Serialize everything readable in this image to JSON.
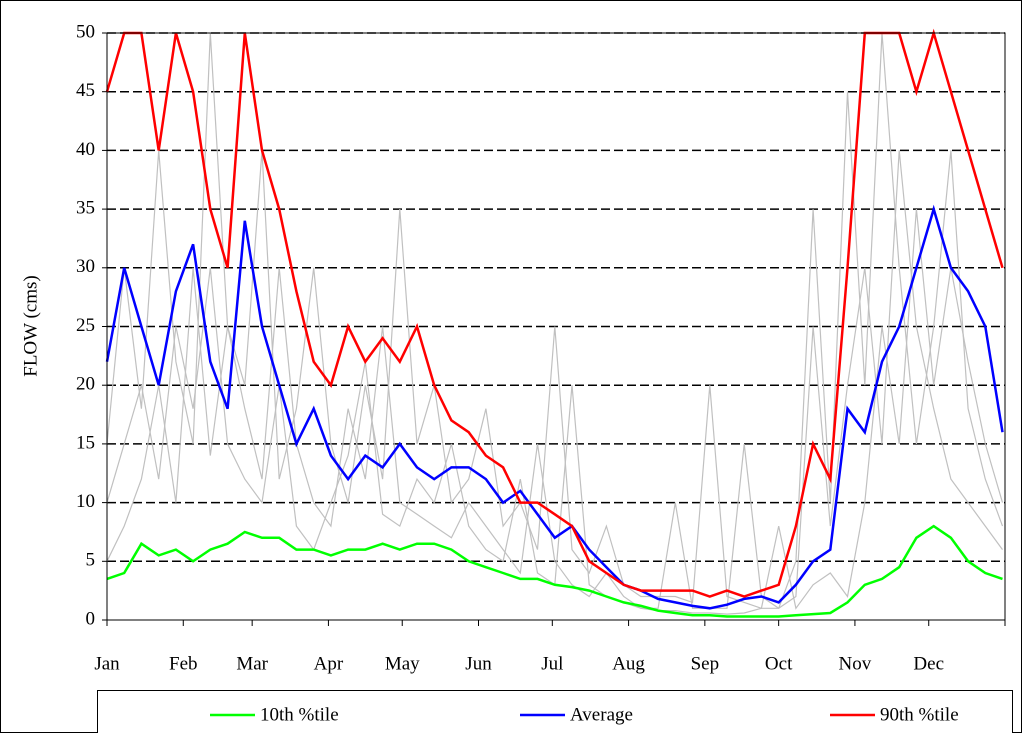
{
  "chart_data": {
    "type": "line",
    "y_label": "FLOW (cms)",
    "x": [
      0,
      7,
      14,
      21,
      28,
      35,
      42,
      49,
      56,
      63,
      70,
      77,
      84,
      91,
      98,
      105,
      112,
      119,
      126,
      133,
      140,
      147,
      154,
      161,
      168,
      175,
      182,
      189,
      196,
      203,
      210,
      217,
      224,
      231,
      238,
      245,
      252,
      259,
      266,
      273,
      280,
      287,
      294,
      301,
      308,
      315,
      322,
      329,
      336,
      343,
      350,
      357,
      364
    ],
    "xlim": [
      0,
      365
    ],
    "xticks": [
      {
        "value": 0,
        "label": "Jan"
      },
      {
        "value": 31,
        "label": "Feb"
      },
      {
        "value": 59,
        "label": "Mar"
      },
      {
        "value": 90,
        "label": "Apr"
      },
      {
        "value": 120,
        "label": "May"
      },
      {
        "value": 151,
        "label": "Jun"
      },
      {
        "value": 181,
        "label": "Jul"
      },
      {
        "value": 212,
        "label": "Aug"
      },
      {
        "value": 243,
        "label": "Sep"
      },
      {
        "value": 273,
        "label": "Oct"
      },
      {
        "value": 304,
        "label": "Nov"
      },
      {
        "value": 334,
        "label": "Dec"
      }
    ],
    "ylim": [
      0,
      50
    ],
    "yticks": [
      0,
      5,
      10,
      15,
      20,
      25,
      30,
      35,
      40,
      45,
      50
    ],
    "grid": true,
    "series": [
      {
        "color": "#c0c0c0",
        "values": [
          10,
          15,
          20,
          12,
          25,
          18,
          30,
          15,
          12,
          10,
          20,
          8,
          6,
          10,
          14,
          22,
          9,
          8,
          12,
          10,
          15,
          8,
          6,
          5,
          12,
          4,
          3,
          20,
          3,
          2,
          1.5,
          1,
          1,
          10,
          1,
          1,
          1,
          15,
          2,
          1,
          2,
          25,
          8,
          20,
          30,
          15,
          40,
          25,
          18,
          12,
          10,
          8,
          6
        ]
      },
      {
        "color": "#c0c0c0",
        "values": [
          5,
          8,
          12,
          20,
          10,
          30,
          14,
          25,
          18,
          12,
          30,
          15,
          10,
          8,
          18,
          12,
          25,
          10,
          9,
          8,
          7,
          10,
          8,
          6,
          4,
          15,
          5,
          3,
          2,
          4,
          2,
          1,
          0.8,
          0.8,
          0.6,
          0.6,
          0.5,
          0.6,
          1,
          8,
          1,
          3,
          4,
          2,
          10,
          25,
          15,
          35,
          20,
          30,
          22,
          15,
          10
        ]
      },
      {
        "color": "#c0c0c0",
        "values": [
          15,
          30,
          18,
          40,
          22,
          15,
          50,
          25,
          20,
          40,
          12,
          18,
          30,
          15,
          10,
          20,
          12,
          35,
          15,
          20,
          10,
          12,
          18,
          8,
          10,
          6,
          25,
          6,
          4,
          8,
          3,
          2,
          2,
          2,
          1.5,
          20,
          2,
          1.5,
          1,
          1,
          5,
          35,
          10,
          45,
          20,
          50,
          30,
          15,
          25,
          40,
          18,
          12,
          8
        ]
      },
      {
        "name": "10th %tile",
        "color": "#00ff00",
        "values": [
          3.5,
          4,
          6.5,
          5.5,
          6,
          5,
          6,
          6.5,
          7.5,
          7,
          7,
          6,
          6,
          5.5,
          6,
          6,
          6.5,
          6,
          6.5,
          6.5,
          6,
          5,
          4.5,
          4,
          3.5,
          3.5,
          3,
          2.8,
          2.5,
          2,
          1.5,
          1.2,
          0.8,
          0.6,
          0.4,
          0.4,
          0.3,
          0.3,
          0.3,
          0.3,
          0.4,
          0.5,
          0.6,
          1.5,
          3,
          3.5,
          4.5,
          7,
          8,
          7,
          5,
          4,
          3.5
        ]
      },
      {
        "name": "Average",
        "color": "#0000ff",
        "values": [
          22,
          30,
          25,
          20,
          28,
          32,
          22,
          18,
          34,
          25,
          20,
          15,
          18,
          14,
          12,
          14,
          13,
          15,
          13,
          12,
          13,
          13,
          12,
          10,
          11,
          9,
          7,
          8,
          6,
          4.5,
          3,
          2.5,
          1.8,
          1.5,
          1.2,
          1.0,
          1.3,
          1.8,
          2,
          1.5,
          3,
          5,
          6,
          18,
          16,
          22,
          25,
          30,
          35,
          30,
          28,
          25,
          16
        ]
      },
      {
        "name": "90th %tile",
        "color": "#ff0000",
        "values": [
          45,
          50,
          50,
          40,
          50,
          45,
          35,
          30,
          50,
          40,
          35,
          28,
          22,
          20,
          25,
          22,
          24,
          22,
          25,
          20,
          17,
          16,
          14,
          13,
          10,
          10,
          9,
          8,
          5,
          4,
          3,
          2.5,
          2.5,
          2.5,
          2.5,
          2,
          2.5,
          2,
          2.5,
          3,
          8,
          15,
          12,
          30,
          50,
          50,
          50,
          45,
          50,
          45,
          40,
          35,
          30
        ]
      }
    ]
  }
}
